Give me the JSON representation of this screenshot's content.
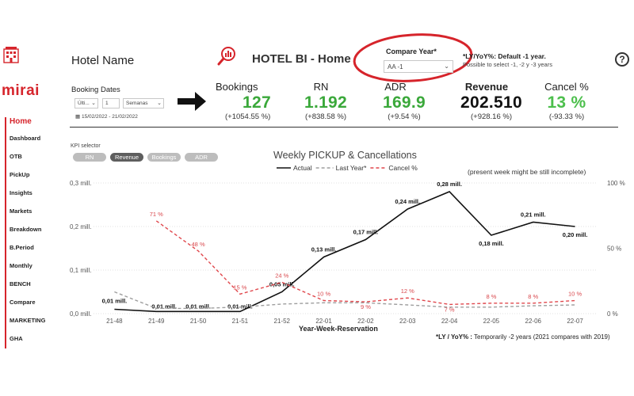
{
  "header": {
    "hotel_name": "Hotel Name",
    "app_title": "HOTEL BI - Home",
    "compare_year_label": "Compare Year*",
    "compare_year_value": "AA -1",
    "ly_note_title": "*LY/YoY%: Default -1 year.",
    "ly_note_sub": "Possible to select -1, -2 y -3 years",
    "help_label": "?",
    "logo_text": "mirai",
    "accent_color": "#d6242b"
  },
  "booking_dates": {
    "label": "Booking Dates",
    "period_mode": "Últi...",
    "count": "1",
    "unit": "Semanas",
    "range": "15/02/2022 - 21/02/2022"
  },
  "kpis": [
    {
      "label": "Bookings",
      "value": "127",
      "delta": "(+1054.55 %)"
    },
    {
      "label": "RN",
      "value": "1.192",
      "delta": "(+838.58 %)"
    },
    {
      "label": "ADR",
      "value": "169.9",
      "delta": "(+9.54 %)"
    },
    {
      "label": "Revenue",
      "value": "202.510",
      "delta": "(+928.16 %)"
    },
    {
      "label": "Cancel %",
      "value": "13 %",
      "delta": "(-93.33 %)"
    }
  ],
  "sidebar": {
    "items": [
      "Home",
      "Dashboard",
      "OTB",
      "PickUp",
      "Insights",
      "Markets",
      "Breakdown",
      "B.Period",
      "Monthly",
      "BENCH",
      "Compare",
      "MARKETING",
      "GHA"
    ],
    "active": "Home"
  },
  "kpi_selector": {
    "label": "KPI selector",
    "options": [
      "RN",
      "Revenue",
      "Bookings",
      "ADR"
    ],
    "active": "Revenue"
  },
  "present_note": "(present week might be still incomplete)",
  "footer_note_bold": "*LY / YoY% :",
  "footer_note_text": "Temporarily -2 years (2021 compares with 2019)",
  "chart_data": {
    "type": "line",
    "title": "Weekly PICKUP & Cancellations",
    "xlabel": "Year-Week-Reservation",
    "ylabel": "",
    "categories": [
      "21-48",
      "21-49",
      "21-50",
      "21-51",
      "21-52",
      "22-01",
      "22-02",
      "22-03",
      "22-04",
      "22-05",
      "22-06",
      "22-07"
    ],
    "ylim": [
      0,
      0.3
    ],
    "yticks": [
      "0,0 mill.",
      "0,1 mill.",
      "0,2 mill.",
      "0,3 mill."
    ],
    "y2lim": [
      0,
      100
    ],
    "y2ticks": [
      "0 %",
      "50 %",
      "100 %"
    ],
    "legend_position": "top",
    "series": [
      {
        "name": "Actual",
        "axis": "left",
        "style": "solid",
        "color": "#111111",
        "values": [
          0.01,
          0.005,
          0.005,
          0.005,
          0.05,
          0.13,
          0.17,
          0.24,
          0.28,
          0.18,
          0.21,
          0.2
        ],
        "labels": [
          "0,01 mill.",
          "0,01 mill.",
          "0,01 mill.",
          "0,01 mill.",
          "0,05 mill.",
          "0,13 mill.",
          "0,17 mill.",
          "0,24 mill.",
          "0,28 mill.",
          "0,18 mill.",
          "0,21 mill.",
          "0,20 mill."
        ]
      },
      {
        "name": "Last Year*",
        "axis": "left",
        "style": "dashed",
        "color": "#9e9e9e",
        "values": [
          0.05,
          0.012,
          0.012,
          0.015,
          0.022,
          0.025,
          0.025,
          0.02,
          0.015,
          0.015,
          0.018,
          0.02
        ],
        "labels": []
      },
      {
        "name": "Cancel %",
        "axis": "right",
        "style": "dashed",
        "color": "#e0474c",
        "values": [
          null,
          71,
          48,
          15,
          24,
          10,
          9,
          12,
          7,
          8,
          8,
          10
        ],
        "labels": [
          "",
          "71 %",
          "48 %",
          "15 %",
          "24 %",
          "10 %",
          "9 %",
          "12 %",
          "7 %",
          "8 %",
          "8 %",
          "10 %"
        ]
      }
    ]
  }
}
